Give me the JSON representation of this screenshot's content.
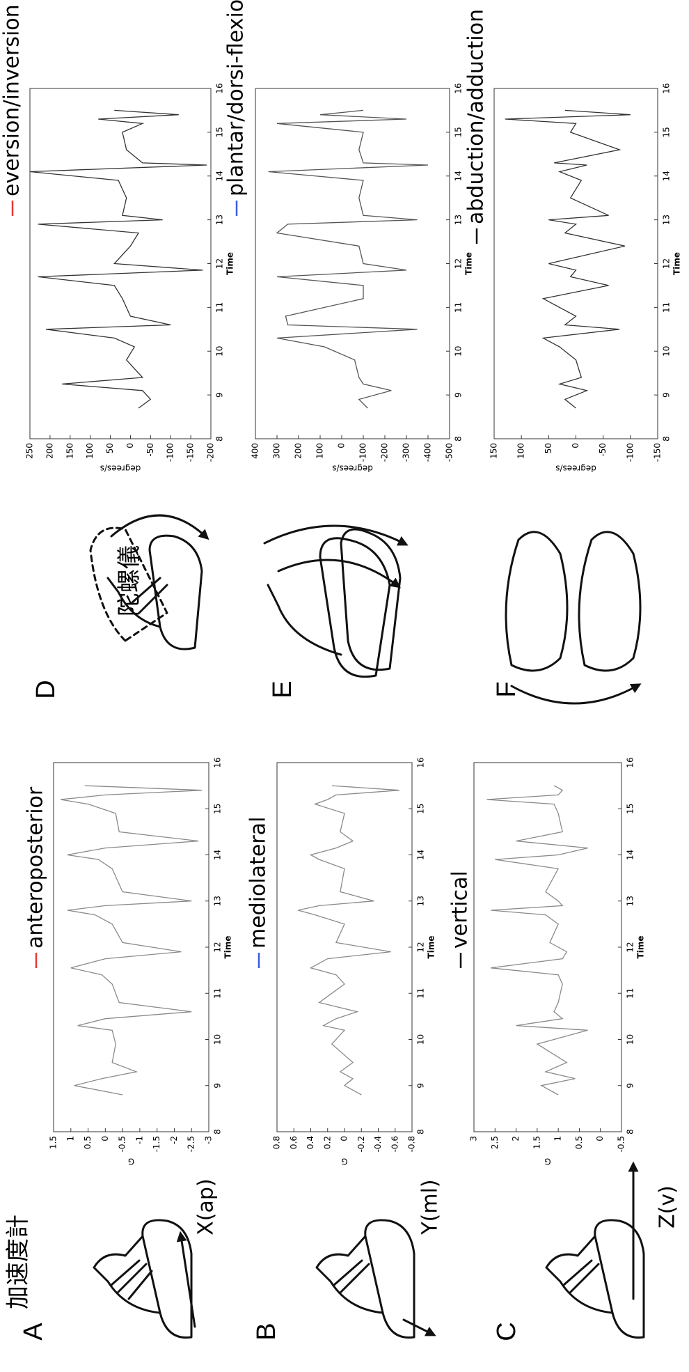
{
  "chart_data": [
    {
      "type": "line",
      "xlabel": "Time",
      "ylabel": "G",
      "legend_color": "#e53935",
      "x": [
        8.8,
        9.0,
        9.15,
        9.3,
        9.5,
        9.9,
        10.2,
        10.3,
        10.45,
        10.6,
        10.8,
        11.2,
        11.4,
        11.55,
        11.75,
        11.9,
        12.1,
        12.5,
        12.7,
        12.8,
        12.9,
        13.0,
        13.2,
        13.7,
        13.9,
        14.0,
        14.15,
        14.3,
        14.5,
        14.9,
        15.1,
        15.2,
        15.3,
        15.4,
        15.5
      ],
      "xlim": [
        8,
        16
      ],
      "xticks": [
        8,
        9,
        10,
        11,
        12,
        13,
        14,
        15,
        16
      ],
      "ylim": [
        -3,
        1.5
      ],
      "yticks": [
        1.5,
        1,
        0.5,
        0,
        -0.5,
        -1,
        -1.5,
        -2,
        -2.5,
        -3
      ],
      "series": [
        {
          "name": "anteroposterior",
          "color": "#8a8a8a",
          "values": [
            -0.5,
            0.9,
            0.1,
            -0.9,
            -0.2,
            -0.3,
            -0.2,
            0.8,
            0.0,
            -2.5,
            -0.4,
            -0.2,
            0.1,
            1.0,
            0.0,
            -2.2,
            -0.5,
            -0.2,
            0.3,
            1.1,
            0.0,
            -2.5,
            -0.5,
            -0.2,
            0.2,
            1.1,
            0.0,
            -2.7,
            -0.4,
            -0.3,
            0.5,
            1.3,
            0.0,
            -2.8,
            0.6
          ]
        }
      ]
    },
    {
      "type": "line",
      "xlabel": "Time",
      "ylabel": "G",
      "legend_color": "#3b5bdb",
      "x": [
        8.8,
        9.0,
        9.15,
        9.3,
        9.5,
        9.9,
        10.2,
        10.3,
        10.45,
        10.6,
        10.8,
        11.2,
        11.4,
        11.55,
        11.75,
        11.9,
        12.1,
        12.5,
        12.7,
        12.8,
        12.9,
        13.0,
        13.2,
        13.7,
        13.9,
        14.0,
        14.15,
        14.3,
        14.5,
        14.9,
        15.1,
        15.2,
        15.3,
        15.4,
        15.5
      ],
      "xlim": [
        8,
        16
      ],
      "xticks": [
        8,
        9,
        10,
        11,
        12,
        13,
        14,
        15,
        16
      ],
      "ylim": [
        -0.8,
        0.8
      ],
      "yticks": [
        0.8,
        0.6,
        0.4,
        0.2,
        0,
        -0.2,
        -0.4,
        -0.6,
        -0.8
      ],
      "series": [
        {
          "name": "mediolateral",
          "color": "#8a8a8a",
          "values": [
            -0.2,
            0.0,
            -0.1,
            0.05,
            -0.1,
            0.15,
            0.0,
            0.25,
            0.1,
            -0.15,
            0.3,
            0.0,
            0.1,
            0.4,
            0.2,
            -0.55,
            0.1,
            0.0,
            0.35,
            0.55,
            0.3,
            -0.35,
            0.05,
            0.0,
            0.3,
            0.4,
            0.1,
            -0.1,
            0.05,
            0.0,
            0.35,
            0.2,
            0.1,
            -0.65,
            0.15
          ]
        }
      ]
    },
    {
      "type": "line",
      "xlabel": "Time",
      "ylabel": "G",
      "legend_color": "#111111",
      "x": [
        8.8,
        9.0,
        9.15,
        9.3,
        9.5,
        9.9,
        10.2,
        10.3,
        10.45,
        10.6,
        10.8,
        11.2,
        11.4,
        11.55,
        11.75,
        11.9,
        12.1,
        12.5,
        12.7,
        12.8,
        12.9,
        13.0,
        13.2,
        13.7,
        13.9,
        14.0,
        14.15,
        14.3,
        14.5,
        14.9,
        15.1,
        15.2,
        15.3,
        15.4,
        15.5
      ],
      "xlim": [
        8,
        16
      ],
      "xticks": [
        8,
        9,
        10,
        11,
        12,
        13,
        14,
        15,
        16
      ],
      "ylim": [
        -0.5,
        3
      ],
      "yticks": [
        3,
        2.5,
        2,
        1.5,
        1,
        0.5,
        0,
        -0.5
      ],
      "series": [
        {
          "name": "vertical",
          "color": "#8a8a8a",
          "values": [
            1.0,
            1.4,
            0.6,
            1.3,
            0.8,
            1.5,
            0.3,
            2.0,
            0.9,
            1.1,
            1.0,
            0.9,
            1.0,
            2.6,
            0.9,
            0.8,
            1.2,
            1.0,
            1.3,
            2.6,
            0.9,
            1.0,
            1.3,
            1.0,
            2.5,
            1.0,
            0.3,
            2.0,
            0.9,
            1.0,
            1.1,
            2.7,
            1.0,
            0.9,
            1.1
          ]
        }
      ]
    },
    {
      "type": "line",
      "xlabel": "Time",
      "ylabel": "degrees/s",
      "legend_color": "#e53935",
      "x": [
        8.7,
        8.9,
        9.1,
        9.25,
        9.4,
        9.8,
        10.1,
        10.3,
        10.5,
        10.6,
        10.8,
        11.2,
        11.5,
        11.7,
        11.85,
        12.0,
        12.4,
        12.7,
        12.9,
        13.0,
        13.1,
        13.5,
        13.9,
        14.1,
        14.25,
        14.3,
        14.6,
        15.0,
        15.2,
        15.3,
        15.4,
        15.5
      ],
      "xlim": [
        8,
        16
      ],
      "xticks": [
        8,
        9,
        10,
        11,
        12,
        13,
        14,
        15,
        16
      ],
      "ylim": [
        -200,
        250
      ],
      "yticks": [
        250,
        200,
        150,
        100,
        50,
        0,
        -50,
        -100,
        -150,
        -200
      ],
      "series": [
        {
          "name": "eversion/inversion",
          "color": "#333333",
          "values": [
            -20,
            -50,
            -30,
            170,
            -30,
            10,
            -10,
            40,
            210,
            -100,
            0,
            20,
            40,
            230,
            -180,
            40,
            0,
            -20,
            230,
            -80,
            20,
            10,
            30,
            250,
            -190,
            -30,
            10,
            20,
            -30,
            80,
            -120,
            40
          ]
        }
      ]
    },
    {
      "type": "line",
      "xlabel": "Time",
      "ylabel": "degrees/s",
      "legend_color": "#3b5bdb",
      "x": [
        8.7,
        8.9,
        9.1,
        9.25,
        9.4,
        9.8,
        10.1,
        10.3,
        10.5,
        10.6,
        10.8,
        11.2,
        11.5,
        11.7,
        11.85,
        12.0,
        12.4,
        12.7,
        12.9,
        13.0,
        13.1,
        13.5,
        13.9,
        14.1,
        14.25,
        14.3,
        14.6,
        15.0,
        15.2,
        15.3,
        15.4,
        15.5
      ],
      "xlim": [
        8,
        16
      ],
      "xticks": [
        8,
        9,
        10,
        11,
        12,
        13,
        14,
        15,
        16
      ],
      "ylim": [
        -500,
        400
      ],
      "yticks": [
        400,
        300,
        200,
        100,
        0,
        -100,
        -200,
        -300,
        -400,
        -500
      ],
      "series": [
        {
          "name": "plantar/dorsi-flexion",
          "color": "#555555",
          "values": [
            -120,
            -80,
            -230,
            -100,
            -80,
            -60,
            80,
            300,
            -350,
            250,
            260,
            -100,
            -100,
            300,
            -300,
            -100,
            -80,
            300,
            250,
            -350,
            -100,
            -80,
            -100,
            340,
            -400,
            -100,
            -80,
            -100,
            300,
            -300,
            100,
            -100
          ]
        }
      ]
    },
    {
      "type": "line",
      "xlabel": "Time",
      "ylabel": "degrees/s",
      "legend_color": "#111111",
      "x": [
        8.7,
        8.9,
        9.1,
        9.25,
        9.4,
        9.8,
        10.1,
        10.3,
        10.5,
        10.6,
        10.8,
        11.2,
        11.5,
        11.7,
        11.85,
        12.0,
        12.4,
        12.7,
        12.9,
        13.0,
        13.1,
        13.5,
        13.9,
        14.1,
        14.25,
        14.3,
        14.6,
        15.0,
        15.2,
        15.3,
        15.4,
        15.5
      ],
      "xlim": [
        8,
        16
      ],
      "xticks": [
        8,
        9,
        10,
        11,
        12,
        13,
        14,
        15,
        16
      ],
      "ylim": [
        -150,
        150
      ],
      "yticks": [
        150,
        100,
        50,
        0,
        -50,
        -100,
        -150
      ],
      "series": [
        {
          "name": "abduction/adduction",
          "color": "#333333",
          "values": [
            0,
            20,
            -20,
            30,
            -10,
            0,
            30,
            60,
            -80,
            20,
            0,
            60,
            -60,
            10,
            0,
            50,
            -90,
            20,
            0,
            50,
            -60,
            10,
            -10,
            30,
            -20,
            40,
            -80,
            10,
            0,
            130,
            -100,
            20
          ]
        }
      ]
    }
  ],
  "panels": [
    {
      "letter": "A",
      "sensor_label": "X(ap)"
    },
    {
      "letter": "B",
      "sensor_label": "Y(ml)"
    },
    {
      "letter": "C",
      "sensor_label": "Z(v)"
    },
    {
      "letter": "D"
    },
    {
      "letter": "E"
    },
    {
      "letter": "F"
    }
  ],
  "sensors": {
    "accelerometer": "加速度計",
    "gyroscope": "陀螺儀"
  }
}
